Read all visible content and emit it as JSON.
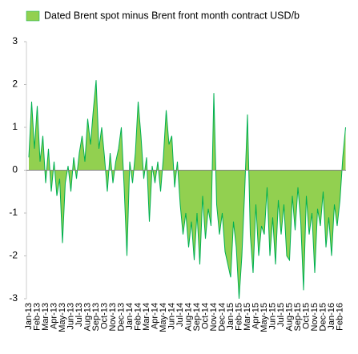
{
  "chart_data": {
    "type": "area",
    "categories": [
      "Jan-13",
      null,
      null,
      "Feb-13",
      null,
      null,
      "Mar-13",
      null,
      null,
      "Apr-13",
      null,
      null,
      "May-13",
      null,
      null,
      "Jun-13",
      null,
      null,
      "Jul-13",
      null,
      null,
      "Aug-13",
      null,
      null,
      "Sep-13",
      null,
      null,
      "Oct-13",
      null,
      null,
      "Nov-13",
      null,
      null,
      "Dec-13",
      null,
      null,
      "Jan-14",
      null,
      null,
      "Feb-14",
      null,
      null,
      "Mar-14",
      null,
      null,
      "Apr-14",
      null,
      null,
      "May-14",
      null,
      null,
      "Jun-14",
      null,
      null,
      "Jul-14",
      null,
      null,
      "Aug-14",
      null,
      null,
      "Sep-14",
      null,
      null,
      "Oct-14",
      null,
      null,
      "Nov-14",
      null,
      null,
      "Dec-14",
      null,
      null,
      "Jan-15",
      null,
      null,
      "Feb-15",
      null,
      null,
      "Mar-15",
      null,
      null,
      "Apr-15",
      null,
      null,
      "May-15",
      null,
      null,
      "Jun-15",
      null,
      null,
      "Jul-15",
      null,
      null,
      "Aug-15",
      null,
      null,
      "Sep-15",
      null,
      null,
      "Oct-15",
      null,
      null,
      "Nov-15",
      null,
      null,
      "Dec-15",
      null,
      null,
      "Jan-16",
      null,
      null,
      "Feb-16",
      null,
      null
    ],
    "series": [
      {
        "name": "Dated Brent spot minus Brent front month contract USD/b",
        "color": "#92d050",
        "line_color": "#00b050",
        "values": [
          0.3,
          1.6,
          0.5,
          1.5,
          0.2,
          0.8,
          -0.3,
          0.5,
          -0.5,
          0.2,
          -0.6,
          -0.2,
          -1.7,
          -0.3,
          0.1,
          -0.5,
          0.3,
          -0.2,
          0.4,
          0.8,
          0.2,
          1.2,
          0.6,
          1.4,
          2.1,
          0.5,
          1.0,
          0.3,
          -0.5,
          0.4,
          -0.3,
          0.2,
          0.5,
          1.0,
          -0.4,
          -2.0,
          0.2,
          -0.3,
          0.4,
          1.6,
          0.8,
          -0.2,
          0.3,
          -1.2,
          0.1,
          -0.3,
          0.2,
          -0.5,
          0.3,
          1.4,
          0.6,
          0.8,
          -0.4,
          0.2,
          -0.8,
          -1.5,
          -1.0,
          -1.8,
          -1.2,
          -2.1,
          -1.0,
          -2.2,
          -0.6,
          -1.6,
          -0.9,
          -1.3,
          1.8,
          -0.8,
          -1.5,
          -1.0,
          -1.9,
          -2.2,
          -2.5,
          -1.2,
          -1.8,
          -3.0,
          -2.0,
          -0.5,
          1.3,
          -1.5,
          -2.4,
          -0.8,
          -2.0,
          -1.3,
          -1.5,
          -0.4,
          -2.0,
          -1.1,
          -2.2,
          -0.7,
          -1.5,
          -0.8,
          -2.0,
          -2.1,
          -0.6,
          -1.4,
          -0.4,
          -1.2,
          -2.8,
          -0.6,
          -1.5,
          -1.0,
          -2.4,
          -0.9,
          -1.3,
          -0.5,
          -1.8,
          -1.1,
          -2.0,
          -0.8,
          -1.3,
          -0.7,
          0.3,
          1.0
        ]
      }
    ],
    "ylim": [
      -3,
      3
    ],
    "yticks": [
      3,
      2,
      1,
      0,
      -1,
      -2,
      -3
    ],
    "legend": "top"
  }
}
